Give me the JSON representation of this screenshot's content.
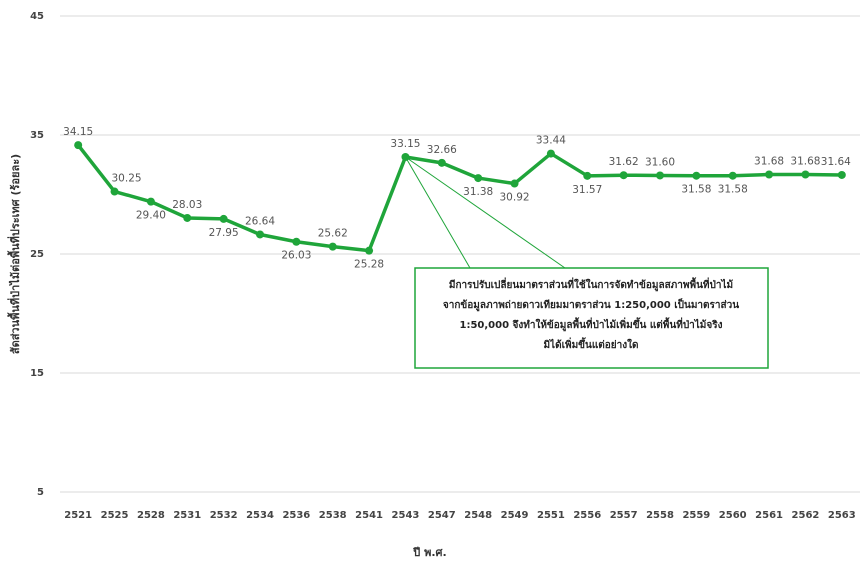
{
  "chart_data": {
    "type": "line",
    "categories": [
      "2521",
      "2525",
      "2528",
      "2531",
      "2532",
      "2534",
      "2536",
      "2538",
      "2541",
      "2543",
      "2547",
      "2548",
      "2549",
      "2551",
      "2556",
      "2557",
      "2558",
      "2559",
      "2560",
      "2561",
      "2562",
      "2563"
    ],
    "series": [
      {
        "color": "#1fa53a",
        "values": [
          34.15,
          30.25,
          29.4,
          28.03,
          27.95,
          26.64,
          26.03,
          25.62,
          25.28,
          33.15,
          32.66,
          31.38,
          30.92,
          33.44,
          31.57,
          31.62,
          31.6,
          31.58,
          31.58,
          31.68,
          31.68,
          31.64
        ],
        "value_labels": [
          "34.15",
          "30.25",
          "29.40",
          "28.03",
          "27.95",
          "26.64",
          "26.03",
          "25.62",
          "25.28",
          "33.15",
          "32.66",
          "31.38",
          "30.92",
          "33.44",
          "31.57",
          "31.62",
          "31.60",
          "31.58",
          "31.58",
          "31.68",
          "31.68",
          "31.64"
        ]
      }
    ],
    "ylim": [
      5,
      45
    ],
    "yticks": [
      5,
      15,
      25,
      35,
      45
    ],
    "grid": true,
    "ylabel": "สัดส่วนพื้นที่ป่าไม้ต่อพื้นที่ประเทศ (ร้อยละ)",
    "xlabel": "ปี พ.ศ.",
    "annotation": [
      "มีการปรับเปลี่ยนมาตราส่วนที่ใช้ในการจัดทำข้อมูลสภาพพื้นที่ป่าไม้",
      "จากข้อมูลภาพถ่ายดาวเทียมมาตราส่วน 1:250,000 เป็นมาตราส่วน",
      "1:50,000 จึงทำให้ข้อมูลพื้นที่ป่าไม้เพิ่มขึ้น แต่พื้นที่ป่าไม้จริง",
      "มิได้เพิ่มขึ้นแต่อย่างใด"
    ]
  }
}
